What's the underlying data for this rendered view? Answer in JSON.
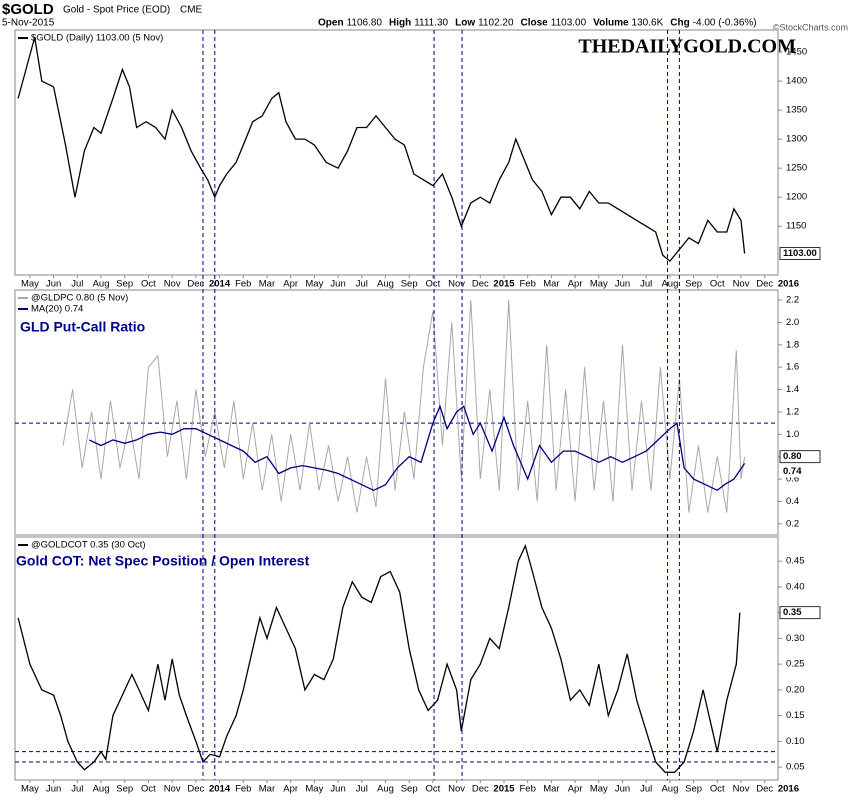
{
  "header": {
    "symbol": "$GOLD",
    "description": "Gold - Spot Price (EOD)",
    "exchange": "CME",
    "date": "5-Nov-2015",
    "quote": [
      {
        "label": "Open",
        "value": "1106.80"
      },
      {
        "label": "High",
        "value": "1111.30"
      },
      {
        "label": "Low",
        "value": "1102.20"
      },
      {
        "label": "Close",
        "value": "1103.00"
      },
      {
        "label": "Volume",
        "value": "130.6K"
      },
      {
        "label": "Chg",
        "value": "-4.00 (-0.36%)"
      }
    ],
    "credit": "©StockCharts.com",
    "brand": "THEDAILYGOLD.COM"
  },
  "vlines": [
    7.3,
    7.8,
    17.05,
    18.23,
    26.9,
    27.4
  ],
  "chart_data": [
    {
      "type": "line",
      "xlim": [
        -0.63,
        31.56
      ],
      "ylim": [
        1066,
        1488
      ],
      "yticks": [
        1150,
        1200,
        1250,
        1300,
        1350,
        1400,
        1450
      ],
      "xticks": [
        {
          "value": 0,
          "label": "May"
        },
        {
          "value": 1,
          "label": "Jun"
        },
        {
          "value": 2,
          "label": "Jul"
        },
        {
          "value": 3,
          "label": "Aug"
        },
        {
          "value": 4,
          "label": "Sep"
        },
        {
          "value": 5,
          "label": "Oct"
        },
        {
          "value": 6,
          "label": "Nov"
        },
        {
          "value": 7,
          "label": "Dec"
        },
        {
          "value": 8,
          "label": "2014"
        },
        {
          "value": 9,
          "label": "Feb"
        },
        {
          "value": 10,
          "label": "Mar"
        },
        {
          "value": 11,
          "label": "Apr"
        },
        {
          "value": 12,
          "label": "May"
        },
        {
          "value": 13,
          "label": "Jun"
        },
        {
          "value": 14,
          "label": "Jul"
        },
        {
          "value": 15,
          "label": "Aug"
        },
        {
          "value": 16,
          "label": "Sep"
        },
        {
          "value": 17,
          "label": "Oct"
        },
        {
          "value": 18,
          "label": "Nov"
        },
        {
          "value": 19,
          "label": "Dec"
        },
        {
          "value": 20,
          "label": "2015"
        },
        {
          "value": 21,
          "label": "Feb"
        },
        {
          "value": 22,
          "label": "Mar"
        },
        {
          "value": 23,
          "label": "Apr"
        },
        {
          "value": 24,
          "label": "May"
        },
        {
          "value": 25,
          "label": "Jun"
        },
        {
          "value": 26,
          "label": "Jul"
        },
        {
          "value": 27,
          "label": "Aug"
        },
        {
          "value": 28,
          "label": "Sep"
        },
        {
          "value": 29,
          "label": "Oct"
        },
        {
          "value": 30,
          "label": "Nov"
        },
        {
          "value": 31,
          "label": "Dec"
        },
        {
          "value": 32,
          "label": "2016"
        }
      ],
      "series": [
        {
          "name": "$GOLD (Daily) 1103.00 (5 Nov)",
          "color": "#000000",
          "x": [
            -0.5,
            0,
            0.2,
            0.5,
            1.0,
            1.5,
            1.9,
            2.3,
            2.7,
            3.0,
            3.5,
            3.9,
            4.2,
            4.5,
            4.9,
            5.3,
            5.7,
            6.0,
            6.4,
            6.8,
            7.2,
            7.5,
            7.8,
            8.0,
            8.3,
            8.7,
            9.0,
            9.4,
            9.8,
            10.2,
            10.5,
            10.8,
            11.2,
            11.6,
            12.0,
            12.5,
            13.0,
            13.4,
            13.8,
            14.2,
            14.6,
            15.0,
            15.4,
            15.8,
            16.2,
            16.6,
            17.0,
            17.4,
            17.8,
            18.2,
            18.6,
            19.0,
            19.4,
            19.8,
            20.2,
            20.5,
            20.8,
            21.2,
            21.6,
            22.0,
            22.4,
            22.8,
            23.2,
            23.6,
            24.0,
            24.4,
            24.8,
            25.2,
            25.6,
            26.0,
            26.4,
            26.7,
            27.0,
            27.4,
            27.8,
            28.2,
            28.6,
            29.0,
            29.4,
            29.7,
            30.0,
            30.15
          ],
          "values": [
            1370,
            1445,
            1475,
            1400,
            1390,
            1290,
            1200,
            1280,
            1320,
            1310,
            1370,
            1420,
            1390,
            1320,
            1330,
            1320,
            1300,
            1350,
            1320,
            1280,
            1250,
            1230,
            1200,
            1220,
            1240,
            1260,
            1290,
            1330,
            1340,
            1370,
            1380,
            1330,
            1300,
            1300,
            1290,
            1260,
            1250,
            1280,
            1320,
            1320,
            1340,
            1320,
            1300,
            1290,
            1240,
            1230,
            1220,
            1240,
            1200,
            1150,
            1190,
            1200,
            1190,
            1230,
            1260,
            1300,
            1270,
            1230,
            1210,
            1170,
            1200,
            1200,
            1180,
            1210,
            1190,
            1190,
            1180,
            1170,
            1160,
            1150,
            1140,
            1100,
            1090,
            1110,
            1130,
            1120,
            1160,
            1140,
            1140,
            1180,
            1160,
            1103
          ],
          "end_label": "1103.00"
        }
      ]
    },
    {
      "type": "line",
      "title": "GLD Put-Call Ratio",
      "xlim": [
        -0.63,
        31.56
      ],
      "ylim": [
        0.1,
        2.29
      ],
      "yticks": [
        0.2,
        0.4,
        0.6,
        0.8,
        {
          "value": 1,
          "label": "1.0"
        },
        1.2,
        1.4,
        1.6,
        1.8,
        {
          "value": 2,
          "label": "2.0"
        },
        2.2
      ],
      "hlines": [
        1.1
      ],
      "series": [
        {
          "name": "@GLDPC 0.80 (5 Nov)",
          "color": "#a8a8a8",
          "x": [
            1.4,
            1.8,
            2.2,
            2.6,
            3.0,
            3.4,
            3.8,
            4.2,
            4.6,
            5.0,
            5.4,
            5.8,
            6.2,
            6.6,
            7.0,
            7.4,
            7.8,
            8.2,
            8.6,
            9.0,
            9.4,
            9.8,
            10.2,
            10.6,
            11.0,
            11.4,
            11.8,
            12.2,
            12.6,
            13.0,
            13.4,
            13.8,
            14.2,
            14.6,
            15.0,
            15.4,
            15.8,
            16.2,
            16.6,
            17.0,
            17.4,
            17.8,
            18.2,
            18.6,
            19.0,
            19.4,
            19.8,
            20.2,
            20.6,
            21.0,
            21.4,
            21.8,
            22.2,
            22.6,
            23.0,
            23.4,
            23.8,
            24.2,
            24.6,
            25.0,
            25.4,
            25.8,
            26.2,
            26.6,
            27.0,
            27.4,
            27.8,
            28.2,
            28.6,
            29.0,
            29.4,
            29.8,
            30.0,
            30.15
          ],
          "values": [
            0.9,
            1.4,
            0.7,
            1.2,
            0.6,
            1.3,
            0.7,
            1.1,
            0.6,
            1.6,
            1.7,
            0.8,
            1.3,
            0.6,
            1.4,
            0.8,
            1.2,
            0.7,
            1.3,
            0.6,
            1.1,
            0.5,
            1.0,
            0.4,
            1.0,
            0.5,
            1.1,
            0.5,
            0.9,
            0.4,
            0.8,
            0.3,
            0.8,
            0.35,
            1.5,
            0.5,
            1.2,
            0.6,
            1.6,
            2.1,
            0.9,
            2.0,
            0.6,
            2.2,
            0.6,
            1.4,
            0.5,
            2.2,
            0.5,
            1.3,
            0.4,
            1.8,
            0.5,
            1.4,
            0.4,
            1.6,
            0.5,
            1.3,
            0.4,
            1.8,
            0.5,
            1.3,
            0.5,
            1.6,
            0.6,
            1.5,
            0.3,
            0.9,
            0.3,
            0.8,
            0.3,
            1.75,
            0.6,
            0.8
          ],
          "end_label": "0.80"
        },
        {
          "name": "MA(20) 0.74",
          "color": "#00007f",
          "x": [
            2.5,
            3.0,
            3.5,
            4.0,
            4.5,
            5.0,
            5.5,
            6.0,
            6.5,
            7.0,
            7.5,
            8.0,
            8.5,
            9.0,
            9.5,
            10.0,
            10.5,
            11.0,
            11.5,
            12.0,
            12.5,
            13.0,
            13.5,
            14.0,
            14.5,
            15.0,
            15.5,
            16.0,
            16.5,
            17.0,
            17.3,
            17.6,
            18.0,
            18.3,
            18.7,
            19.0,
            19.5,
            20.0,
            20.4,
            21.0,
            21.5,
            22.0,
            22.5,
            23.0,
            23.5,
            24.0,
            24.5,
            25.0,
            25.5,
            26.0,
            26.5,
            27.0,
            27.3,
            27.6,
            28.0,
            28.5,
            29.0,
            29.3,
            29.7,
            30.15
          ],
          "values": [
            0.95,
            0.9,
            0.95,
            0.92,
            0.95,
            1.0,
            1.02,
            1.0,
            1.05,
            1.05,
            1.0,
            0.95,
            0.9,
            0.85,
            0.75,
            0.8,
            0.65,
            0.7,
            0.72,
            0.7,
            0.68,
            0.65,
            0.6,
            0.55,
            0.5,
            0.55,
            0.7,
            0.8,
            0.75,
            1.1,
            1.25,
            1.05,
            1.2,
            1.25,
            1.0,
            1.1,
            0.85,
            1.15,
            0.9,
            0.6,
            0.9,
            0.75,
            0.85,
            0.85,
            0.8,
            0.75,
            0.8,
            0.75,
            0.8,
            0.85,
            0.95,
            1.05,
            1.1,
            0.7,
            0.6,
            0.55,
            0.5,
            0.55,
            0.6,
            0.74
          ],
          "end_label": "0.74"
        }
      ]
    },
    {
      "type": "line",
      "title": "Gold COT: Net Spec Position / Open Interest",
      "xlim": [
        -0.63,
        31.56
      ],
      "ylim": [
        0.025,
        0.497
      ],
      "yticks": [
        0.05,
        {
          "value": 0.1,
          "label": "0.10"
        },
        0.15,
        {
          "value": 0.2,
          "label": "0.20"
        },
        0.25,
        {
          "value": 0.3,
          "label": "0.30"
        },
        0.35,
        {
          "value": 0.4,
          "label": "0.40"
        },
        0.45
      ],
      "hlines": [
        0.08,
        0.06
      ],
      "xticks": [
        {
          "value": 0,
          "label": "May"
        },
        {
          "value": 1,
          "label": "Jun"
        },
        {
          "value": 2,
          "label": "Jul"
        },
        {
          "value": 3,
          "label": "Aug"
        },
        {
          "value": 4,
          "label": "Sep"
        },
        {
          "value": 5,
          "label": "Oct"
        },
        {
          "value": 6,
          "label": "Nov"
        },
        {
          "value": 7,
          "label": "Dec"
        },
        {
          "value": 8,
          "label": "2014"
        },
        {
          "value": 9,
          "label": "Feb"
        },
        {
          "value": 10,
          "label": "Mar"
        },
        {
          "value": 11,
          "label": "Apr"
        },
        {
          "value": 12,
          "label": "May"
        },
        {
          "value": 13,
          "label": "Jun"
        },
        {
          "value": 14,
          "label": "Jul"
        },
        {
          "value": 15,
          "label": "Aug"
        },
        {
          "value": 16,
          "label": "Sep"
        },
        {
          "value": 17,
          "label": "Oct"
        },
        {
          "value": 18,
          "label": "Nov"
        },
        {
          "value": 19,
          "label": "Dec"
        },
        {
          "value": 20,
          "label": "2015"
        },
        {
          "value": 21,
          "label": "Feb"
        },
        {
          "value": 22,
          "label": "Mar"
        },
        {
          "value": 23,
          "label": "Apr"
        },
        {
          "value": 24,
          "label": "May"
        },
        {
          "value": 25,
          "label": "Jun"
        },
        {
          "value": 26,
          "label": "Jul"
        },
        {
          "value": 27,
          "label": "Aug"
        },
        {
          "value": 28,
          "label": "Sep"
        },
        {
          "value": 29,
          "label": "Oct"
        },
        {
          "value": 30,
          "label": "Nov"
        },
        {
          "value": 31,
          "label": "Dec"
        },
        {
          "value": 32,
          "label": "2016"
        }
      ],
      "series": [
        {
          "name": "@GOLDCOT 0.35 (30 Oct)",
          "color": "#000000",
          "x": [
            -0.5,
            0,
            0.5,
            1.0,
            1.3,
            1.6,
            2.0,
            2.3,
            2.7,
            3.0,
            3.2,
            3.5,
            3.9,
            4.3,
            4.6,
            5.0,
            5.4,
            5.7,
            6.0,
            6.3,
            6.6,
            7.0,
            7.3,
            7.6,
            8.0,
            8.3,
            8.7,
            9.0,
            9.3,
            9.7,
            10.0,
            10.4,
            10.8,
            11.2,
            11.6,
            12.0,
            12.4,
            12.8,
            13.2,
            13.6,
            14.0,
            14.4,
            14.8,
            15.2,
            15.6,
            16.0,
            16.4,
            16.8,
            17.2,
            17.6,
            18.0,
            18.2,
            18.6,
            19.0,
            19.4,
            19.8,
            20.2,
            20.6,
            20.9,
            21.2,
            21.6,
            22.0,
            22.4,
            22.8,
            23.2,
            23.6,
            24.0,
            24.4,
            24.8,
            25.2,
            25.6,
            26.0,
            26.4,
            26.8,
            27.2,
            27.6,
            28.0,
            28.4,
            28.7,
            29.0,
            29.4,
            29.8,
            29.95
          ],
          "values": [
            0.34,
            0.25,
            0.2,
            0.19,
            0.15,
            0.1,
            0.06,
            0.045,
            0.06,
            0.08,
            0.065,
            0.15,
            0.19,
            0.23,
            0.2,
            0.16,
            0.25,
            0.18,
            0.26,
            0.19,
            0.15,
            0.1,
            0.06,
            0.075,
            0.07,
            0.11,
            0.15,
            0.2,
            0.26,
            0.34,
            0.3,
            0.36,
            0.32,
            0.28,
            0.2,
            0.23,
            0.22,
            0.26,
            0.36,
            0.41,
            0.38,
            0.37,
            0.42,
            0.43,
            0.39,
            0.28,
            0.2,
            0.16,
            0.18,
            0.25,
            0.2,
            0.12,
            0.22,
            0.25,
            0.3,
            0.28,
            0.36,
            0.45,
            0.48,
            0.43,
            0.36,
            0.32,
            0.26,
            0.18,
            0.2,
            0.17,
            0.25,
            0.15,
            0.2,
            0.27,
            0.18,
            0.12,
            0.06,
            0.04,
            0.04,
            0.06,
            0.12,
            0.2,
            0.14,
            0.08,
            0.18,
            0.25,
            0.35
          ],
          "end_label": "0.35"
        }
      ]
    }
  ]
}
